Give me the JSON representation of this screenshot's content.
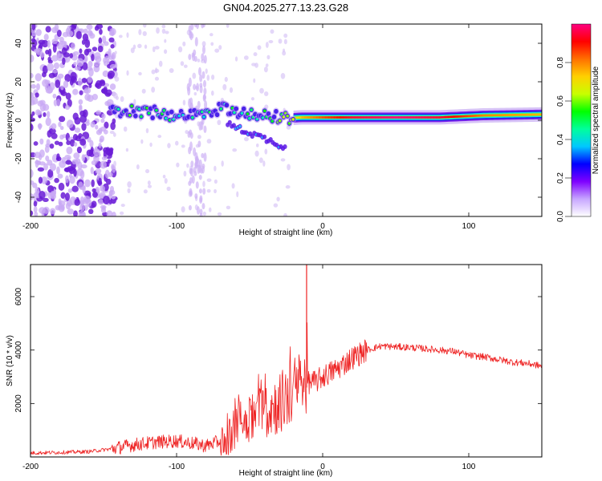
{
  "title": "GN04.2025.277.13.23.G28",
  "chart_data": [
    {
      "type": "heatmap",
      "name": "spectrogram",
      "xlabel": "Height of straight line (km)",
      "ylabel": "Frequency (Hz)",
      "xlim": [
        -200,
        150
      ],
      "ylim": [
        -50,
        50
      ],
      "xticks": [
        -200,
        -100,
        0,
        100
      ],
      "yticks": [
        -40,
        -20,
        0,
        20,
        40
      ],
      "colorbar": {
        "label": "Normalized spectral amplitude",
        "range": [
          0,
          1
        ],
        "ticks": [
          0.0,
          0.2,
          0.4,
          0.6,
          0.8
        ],
        "colors": [
          "#ffffff",
          "#c7a6ff",
          "#7f00ff",
          "#0000ff",
          "#00c8ff",
          "#00ff9c",
          "#00ff00",
          "#c8ff00",
          "#ffd000",
          "#ff7000",
          "#ff0000",
          "#ff0080"
        ]
      },
      "ridge": [
        {
          "x": -145,
          "freq": 4,
          "amp": 0.45
        },
        {
          "x": -130,
          "freq": 5,
          "amp": 0.5
        },
        {
          "x": -115,
          "freq": 4,
          "amp": 0.45
        },
        {
          "x": -100,
          "freq": 2,
          "amp": 0.4
        },
        {
          "x": -85,
          "freq": 3,
          "amp": 0.4
        },
        {
          "x": -70,
          "freq": 6,
          "amp": 0.45
        },
        {
          "x": -55,
          "freq": 4,
          "amp": 0.45
        },
        {
          "x": -40,
          "freq": 3,
          "amp": 0.45
        },
        {
          "x": -25,
          "freq": 1,
          "amp": 0.55
        },
        {
          "x": -15,
          "freq": 1.5,
          "amp": 0.75
        },
        {
          "x": 0,
          "freq": 1.5,
          "amp": 0.85
        },
        {
          "x": 20,
          "freq": 1.5,
          "amp": 0.95
        },
        {
          "x": 50,
          "freq": 1.5,
          "amp": 1.0
        },
        {
          "x": 80,
          "freq": 1.5,
          "amp": 0.95
        },
        {
          "x": 110,
          "freq": 2.5,
          "amp": 0.8
        },
        {
          "x": 150,
          "freq": 3,
          "amp": 0.75
        }
      ]
    },
    {
      "type": "line",
      "name": "snr",
      "xlabel": "Height of straight line (km)",
      "ylabel": "SNR (10 * v/v)",
      "xlim": [
        -200,
        150
      ],
      "ylim": [
        0,
        7200
      ],
      "xticks": [
        -200,
        -100,
        0,
        100
      ],
      "yticks": [
        2000,
        4000,
        6000
      ],
      "color": "#ee2222",
      "series": [
        {
          "x": -200,
          "y": 150
        },
        {
          "x": -180,
          "y": 170
        },
        {
          "x": -160,
          "y": 200
        },
        {
          "x": -145,
          "y": 300
        },
        {
          "x": -130,
          "y": 450
        },
        {
          "x": -115,
          "y": 550
        },
        {
          "x": -100,
          "y": 600
        },
        {
          "x": -90,
          "y": 520
        },
        {
          "x": -80,
          "y": 420
        },
        {
          "x": -70,
          "y": 600
        },
        {
          "x": -60,
          "y": 1000
        },
        {
          "x": -50,
          "y": 1500
        },
        {
          "x": -40,
          "y": 1700
        },
        {
          "x": -30,
          "y": 2000
        },
        {
          "x": -25,
          "y": 2200
        },
        {
          "x": -20,
          "y": 2500
        },
        {
          "x": -15,
          "y": 2600
        },
        {
          "x": -12,
          "y": 2700
        },
        {
          "x": -10,
          "y": 2800
        },
        {
          "x": -5,
          "y": 2800
        },
        {
          "x": 0,
          "y": 3000
        },
        {
          "x": 10,
          "y": 3300
        },
        {
          "x": 20,
          "y": 3700
        },
        {
          "x": 30,
          "y": 4000
        },
        {
          "x": 40,
          "y": 4150
        },
        {
          "x": 50,
          "y": 4120
        },
        {
          "x": 60,
          "y": 4100
        },
        {
          "x": 70,
          "y": 4050
        },
        {
          "x": 80,
          "y": 4000
        },
        {
          "x": 90,
          "y": 3950
        },
        {
          "x": 100,
          "y": 3800
        },
        {
          "x": 110,
          "y": 3750
        },
        {
          "x": 120,
          "y": 3650
        },
        {
          "x": 130,
          "y": 3550
        },
        {
          "x": 140,
          "y": 3500
        },
        {
          "x": 150,
          "y": 3400
        }
      ],
      "spike": {
        "x": -11,
        "y": 7200
      }
    }
  ]
}
